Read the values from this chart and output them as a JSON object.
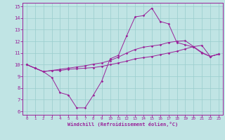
{
  "xlabel": "Windchill (Refroidissement éolien,°C)",
  "bg_color": "#c0e4e4",
  "line_color": "#992299",
  "grid_color": "#99cccc",
  "xlim": [
    -0.5,
    23.5
  ],
  "ylim": [
    5.7,
    15.3
  ],
  "xticks": [
    0,
    1,
    2,
    3,
    4,
    5,
    6,
    7,
    8,
    9,
    10,
    11,
    12,
    13,
    14,
    15,
    16,
    17,
    18,
    19,
    20,
    21,
    22,
    23
  ],
  "yticks": [
    6,
    7,
    8,
    9,
    10,
    11,
    12,
    13,
    14,
    15
  ],
  "series1_x": [
    0,
    1,
    2,
    3,
    4,
    5,
    6,
    7,
    8,
    9,
    10,
    11,
    12,
    13,
    14,
    15,
    16,
    17,
    18,
    19,
    20,
    21,
    22,
    23
  ],
  "series1_y": [
    10.0,
    9.7,
    9.4,
    8.9,
    7.6,
    7.4,
    6.3,
    6.3,
    7.4,
    8.6,
    10.5,
    10.8,
    12.5,
    14.1,
    14.2,
    14.85,
    13.7,
    13.5,
    11.9,
    11.7,
    11.5,
    11.0,
    10.7,
    10.9
  ],
  "series2_x": [
    0,
    1,
    2,
    3,
    4,
    5,
    6,
    7,
    8,
    9,
    10,
    11,
    12,
    13,
    14,
    15,
    16,
    17,
    18,
    19,
    20,
    21,
    22,
    23
  ],
  "series2_y": [
    10.0,
    9.7,
    9.4,
    9.5,
    9.5,
    9.6,
    9.65,
    9.7,
    9.75,
    9.85,
    10.0,
    10.15,
    10.3,
    10.5,
    10.6,
    10.7,
    10.85,
    11.0,
    11.15,
    11.35,
    11.55,
    11.65,
    10.7,
    10.9
  ],
  "series3_x": [
    0,
    1,
    2,
    3,
    4,
    5,
    6,
    7,
    8,
    9,
    10,
    11,
    12,
    13,
    14,
    15,
    16,
    17,
    18,
    19,
    20,
    21,
    22,
    23
  ],
  "series3_y": [
    10.0,
    9.7,
    9.4,
    9.5,
    9.6,
    9.7,
    9.8,
    9.9,
    10.05,
    10.15,
    10.35,
    10.65,
    11.0,
    11.3,
    11.5,
    11.6,
    11.7,
    11.9,
    12.0,
    12.05,
    11.55,
    11.05,
    10.7,
    10.9
  ]
}
